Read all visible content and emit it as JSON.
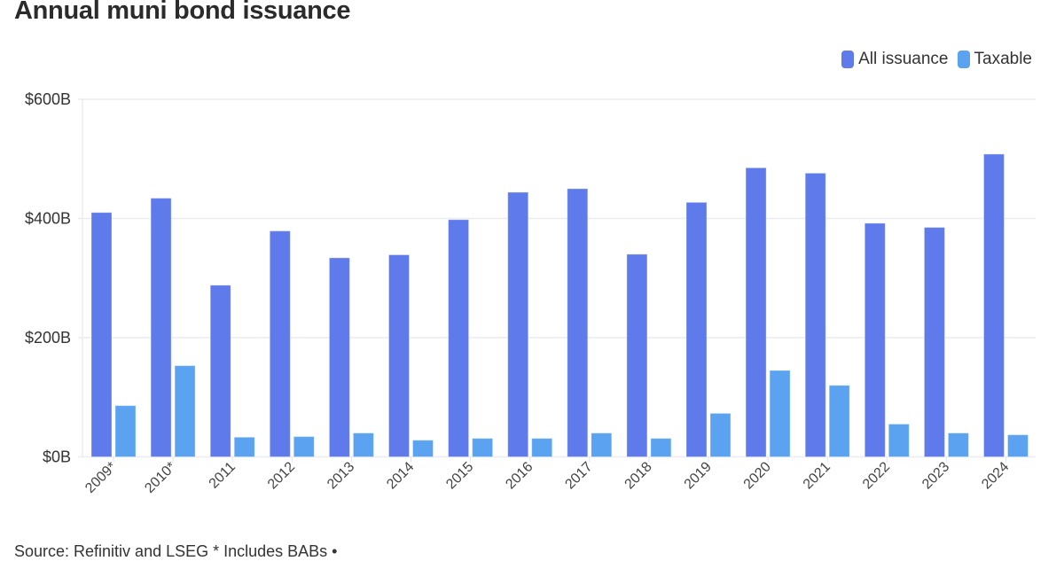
{
  "header": {
    "title": "Annual muni bond issuance"
  },
  "legend": {
    "items": [
      {
        "label": "All issuance",
        "color": "#5F7AEA"
      },
      {
        "label": "Taxable",
        "color": "#5BA3F0"
      }
    ]
  },
  "footer": {
    "source": "Source: Refinitiv and LSEG * Includes BABs •"
  },
  "chart_data": {
    "type": "bar",
    "title": "Annual muni bond issuance",
    "xlabel": "",
    "ylabel": "",
    "ylim": [
      0,
      600
    ],
    "y_ticks": [
      "$0B",
      "$200B",
      "$400B",
      "$600B"
    ],
    "y_tick_values": [
      0,
      200,
      400,
      600
    ],
    "grid": true,
    "legend_position": "top-right",
    "categories": [
      "2009*",
      "2010*",
      "2011",
      "2012",
      "2013",
      "2014",
      "2015",
      "2016",
      "2017",
      "2018",
      "2019",
      "2020",
      "2021",
      "2022",
      "2023",
      "2024"
    ],
    "series": [
      {
        "name": "All issuance",
        "color": "#5F7AEA",
        "values": [
          410,
          434,
          288,
          379,
          334,
          339,
          398,
          444,
          450,
          340,
          427,
          485,
          476,
          392,
          385,
          508
        ]
      },
      {
        "name": "Taxable",
        "color": "#5BA3F0",
        "values": [
          86,
          153,
          33,
          34,
          40,
          28,
          31,
          31,
          40,
          31,
          73,
          145,
          120,
          55,
          40,
          37
        ]
      }
    ],
    "annotations": [
      "* Includes BABs"
    ],
    "units": "billions USD"
  }
}
